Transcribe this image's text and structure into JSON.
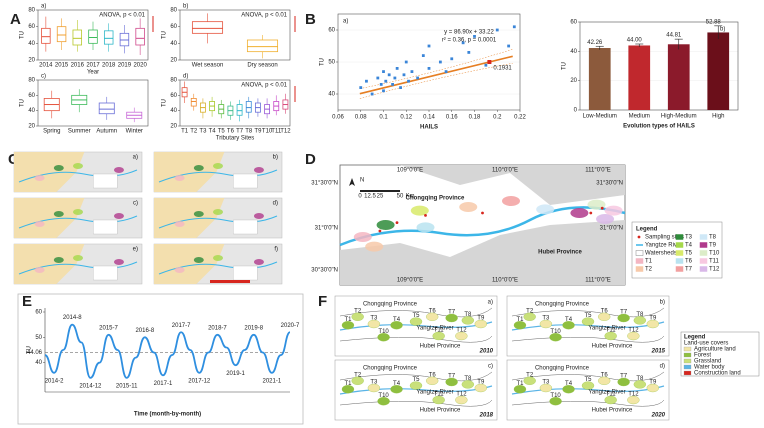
{
  "panel_labels": [
    "A",
    "B",
    "C",
    "D",
    "E",
    "F"
  ],
  "chart_data": [
    {
      "type": "box",
      "label": "a)",
      "stat": "ANOVA, p < 0.01",
      "ylabel": "TU",
      "xlabel": "Year",
      "categories": [
        "2014",
        "2015",
        "2016",
        "2017",
        "2018",
        "2019",
        "2020"
      ],
      "colors": [
        "#e5533d",
        "#f0a030",
        "#b8c82a",
        "#3dbb5a",
        "#2fb8c8",
        "#6a6fd8",
        "#d04a8c"
      ],
      "boxes": [
        {
          "min": 30,
          "q1": 40,
          "median": 48,
          "q3": 58,
          "max": 72
        },
        {
          "min": 32,
          "q1": 42,
          "median": 50,
          "q3": 60,
          "max": 70
        },
        {
          "min": 30,
          "q1": 38,
          "median": 46,
          "q3": 56,
          "max": 68
        },
        {
          "min": 32,
          "q1": 40,
          "median": 47,
          "q3": 56,
          "max": 66
        },
        {
          "min": 30,
          "q1": 39,
          "median": 46,
          "q3": 55,
          "max": 64
        },
        {
          "min": 28,
          "q1": 37,
          "median": 44,
          "q3": 52,
          "max": 62
        },
        {
          "min": 26,
          "q1": 38,
          "median": 46,
          "q3": 58,
          "max": 70
        }
      ],
      "ylim": [
        20,
        80
      ],
      "yticks": [
        20,
        40,
        60,
        80
      ]
    },
    {
      "type": "box",
      "label": "b)",
      "stat": "ANOVA, p < 0.01",
      "ylabel": "TU",
      "categories": [
        "Wet season",
        "Dry season"
      ],
      "colors": [
        "#e5533d",
        "#f0b030"
      ],
      "boxes": [
        {
          "min": 40,
          "q1": 52,
          "median": 58,
          "q3": 66,
          "max": 76
        },
        {
          "min": 22,
          "q1": 30,
          "median": 36,
          "q3": 44,
          "max": 50
        }
      ],
      "ylim": [
        20,
        80
      ],
      "yticks": [
        20,
        40,
        60,
        80
      ]
    },
    {
      "type": "box",
      "label": "c)",
      "ylabel": "TU",
      "categories": [
        "Spring",
        "Summer",
        "Autumn",
        "Winter"
      ],
      "colors": [
        "#e5533d",
        "#3dbb5a",
        "#6a6fd8",
        "#c86ad8"
      ],
      "boxes": [
        {
          "min": 30,
          "q1": 40,
          "median": 48,
          "q3": 56,
          "max": 66
        },
        {
          "min": 38,
          "q1": 48,
          "median": 54,
          "q3": 60,
          "max": 68
        },
        {
          "min": 28,
          "q1": 36,
          "median": 42,
          "q3": 50,
          "max": 58
        },
        {
          "min": 25,
          "q1": 30,
          "median": 34,
          "q3": 38,
          "max": 44
        }
      ],
      "ylim": [
        20,
        80
      ],
      "yticks": [
        20,
        40,
        60,
        80
      ]
    },
    {
      "type": "box",
      "label": "d)",
      "stat": "ANOVA, p < 0.01",
      "ylabel": "TU",
      "xlabel": "Tributary Sites",
      "categories": [
        "T1",
        "T2",
        "T3",
        "T4",
        "T5",
        "T6",
        "T7",
        "T8",
        "T9",
        "T10",
        "T11",
        "T12"
      ],
      "colors": [
        "#e5533d",
        "#f08a30",
        "#d8b02a",
        "#a8c82a",
        "#5abb3d",
        "#3dbb8a",
        "#2fb8c8",
        "#3a8ad8",
        "#6a6fd8",
        "#9a5ad8",
        "#c84ac8",
        "#d84a7a"
      ],
      "boxes": [
        {
          "min": 50,
          "q1": 58,
          "median": 64,
          "q3": 70,
          "max": 78
        },
        {
          "min": 40,
          "q1": 46,
          "median": 52,
          "q3": 56,
          "max": 62
        },
        {
          "min": 30,
          "q1": 38,
          "median": 44,
          "q3": 50,
          "max": 56
        },
        {
          "min": 32,
          "q1": 40,
          "median": 46,
          "q3": 52,
          "max": 58
        },
        {
          "min": 30,
          "q1": 36,
          "median": 42,
          "q3": 48,
          "max": 54
        },
        {
          "min": 28,
          "q1": 34,
          "median": 40,
          "q3": 46,
          "max": 52
        },
        {
          "min": 26,
          "q1": 34,
          "median": 40,
          "q3": 48,
          "max": 54
        },
        {
          "min": 30,
          "q1": 38,
          "median": 44,
          "q3": 52,
          "max": 58
        },
        {
          "min": 32,
          "q1": 38,
          "median": 44,
          "q3": 50,
          "max": 56
        },
        {
          "min": 30,
          "q1": 36,
          "median": 42,
          "q3": 48,
          "max": 56
        },
        {
          "min": 34,
          "q1": 40,
          "median": 46,
          "q3": 52,
          "max": 60
        },
        {
          "min": 36,
          "q1": 42,
          "median": 48,
          "q3": 54,
          "max": 62
        }
      ],
      "ylim": [
        20,
        80
      ],
      "yticks": [
        20,
        40,
        60,
        80
      ]
    },
    {
      "type": "scatter",
      "label": "a)",
      "equation": "y = 86.90x + 33.22",
      "stat": "r² = 0.36, p = 0.0001",
      "xlabel": "HAILS",
      "ylabel": "TU",
      "color": "#3a85d8",
      "fit_color": "#e67e22",
      "fit": {
        "slope": 86.9,
        "intercept": 33.22
      },
      "x": [
        0.08,
        0.085,
        0.09,
        0.095,
        0.098,
        0.1,
        0.1,
        0.102,
        0.105,
        0.108,
        0.11,
        0.112,
        0.115,
        0.118,
        0.12,
        0.122,
        0.125,
        0.13,
        0.135,
        0.14,
        0.14,
        0.15,
        0.155,
        0.16,
        0.17,
        0.175,
        0.18,
        0.19,
        0.2,
        0.21,
        0.215
      ],
      "y": [
        42,
        44,
        40,
        45,
        43,
        47,
        41,
        44,
        46,
        43,
        45,
        48,
        42,
        46,
        50,
        44,
        47,
        45,
        52,
        48,
        55,
        50,
        47,
        51,
        56,
        53,
        58,
        49,
        60,
        55,
        61
      ],
      "highlight": {
        "x": 0.1931,
        "y": 50,
        "color": "#d7261e"
      },
      "xlim": [
        0.06,
        0.22
      ],
      "xticks": [
        0.06,
        0.08,
        0.1,
        0.12,
        0.14,
        0.16,
        0.18,
        0.2,
        0.22
      ],
      "ylim": [
        35,
        65
      ],
      "yticks": [
        40,
        50,
        60
      ]
    },
    {
      "type": "bar",
      "label": "b)",
      "xlabel": "Evolution types of HAILS",
      "ylabel": "TU",
      "categories": [
        "Low-Medium",
        "Medium",
        "High-Medium",
        "High"
      ],
      "values": [
        42.26,
        44.0,
        44.81,
        52.88
      ],
      "value_labels": [
        "42.26",
        "44.00",
        "44.81",
        "52.88"
      ],
      "errors": [
        1.2,
        1.0,
        3.5,
        4.5
      ],
      "colors": [
        "#8c5a3c",
        "#c0282d",
        "#8b1a2b",
        "#6b0f1a"
      ],
      "ylim": [
        0,
        60
      ],
      "yticks": [
        0,
        20,
        40,
        60
      ]
    },
    {
      "type": "line",
      "ylabel": "TU",
      "xlabel": "Time (month-by-month)",
      "color": "#2f8fe0",
      "categories": [
        null,
        null,
        null,
        null,
        null,
        null,
        null,
        null,
        null,
        null,
        null,
        null,
        null,
        null,
        null,
        null,
        null,
        null,
        null,
        null,
        null,
        null,
        null,
        null,
        null,
        null,
        null,
        null
      ],
      "values": [
        43,
        36,
        45,
        55,
        48,
        34,
        40,
        51,
        45,
        34,
        42,
        50,
        44,
        35,
        43,
        52,
        45,
        36,
        44,
        51,
        46,
        39,
        45,
        51,
        44,
        36,
        43,
        52
      ],
      "reference_line": 44.06,
      "annotations": [
        {
          "text": "2014-8",
          "color": "#222222"
        },
        {
          "text": "2015-7",
          "color": "#222222"
        },
        {
          "text": "2016-8",
          "color": "#222222"
        },
        {
          "text": "2017-7",
          "color": "#222222"
        },
        {
          "text": "2018-7",
          "color": "#222222"
        },
        {
          "text": "2019-8",
          "color": "#222222"
        },
        {
          "text": "2020-7",
          "color": "#d7261e"
        },
        {
          "text": "2014-2",
          "color": "#222222"
        },
        {
          "text": "2014-12",
          "color": "#222222"
        },
        {
          "text": "2015-11",
          "color": "#222222"
        },
        {
          "text": "2017-1",
          "color": "#222222"
        },
        {
          "text": "2017-12",
          "color": "#222222"
        },
        {
          "text": "2019-1",
          "color": "#d7261e"
        },
        {
          "text": "2021-1",
          "color": "#222222"
        }
      ],
      "ylim": [
        30,
        60
      ],
      "yticks": [
        40,
        50,
        60
      ]
    }
  ],
  "map_c": {
    "labels": [
      "a)",
      "b)",
      "c)",
      "d)",
      "e)",
      "f)"
    ]
  },
  "map_d": {
    "lon_labels": [
      "109°0'0\"E",
      "110°0'0\"E",
      "111°0'0\"E"
    ],
    "lat_labels": [
      "31°30'0\"N",
      "31°0'0\"N",
      "30°30'0\"N"
    ],
    "north": "N",
    "scale_labels": [
      "0",
      "12.5",
      "25",
      "50",
      "Km"
    ],
    "regions": [
      "Chongqing Province",
      "Hubei Province"
    ],
    "legend_title": "Legend",
    "legend": [
      {
        "name": "Sampling sites",
        "color": "#d7261e"
      },
      {
        "name": "Yangtze River",
        "color": "#3cb6e8"
      },
      {
        "name": "Watersheds",
        "color": "#888888"
      },
      {
        "name": "T1",
        "color": "#f4b6c2"
      },
      {
        "name": "T2",
        "color": "#f7c9a9"
      },
      {
        "name": "T3",
        "color": "#2e8b3a"
      },
      {
        "name": "T4",
        "color": "#a5d84a"
      },
      {
        "name": "T5",
        "color": "#d8ea6a"
      },
      {
        "name": "T6",
        "color": "#b9e3f0"
      },
      {
        "name": "T7",
        "color": "#f2a0a0"
      },
      {
        "name": "T8",
        "color": "#cfe8f7"
      },
      {
        "name": "T9",
        "color": "#b03a8c"
      },
      {
        "name": "T10",
        "color": "#dcecc8"
      },
      {
        "name": "T11",
        "color": "#f7c8e0"
      },
      {
        "name": "T12",
        "color": "#d9b8e8"
      }
    ]
  },
  "map_f": {
    "labels": [
      "a)",
      "b)",
      "c)",
      "d)"
    ],
    "years": [
      "2010",
      "2015",
      "2018",
      "2020"
    ],
    "regions": [
      "Chongqing Province",
      "Hubei Province"
    ],
    "river": "Yangtze River",
    "site_labels": [
      "T1",
      "T2",
      "T3",
      "T4",
      "T5",
      "T6",
      "T7",
      "T8",
      "T9",
      "T10",
      "T11",
      "T12"
    ],
    "legend_title": "Legend",
    "legend_subtitle": "Land-use covers",
    "legend": [
      {
        "name": "Agriculture land",
        "color": "#f2e6a6"
      },
      {
        "name": "Forest",
        "color": "#8fbf3f"
      },
      {
        "name": "Grassland",
        "color": "#c9e07a"
      },
      {
        "name": "Water body",
        "color": "#5ab4e6"
      },
      {
        "name": "Construction land",
        "color": "#d7261e"
      }
    ]
  }
}
